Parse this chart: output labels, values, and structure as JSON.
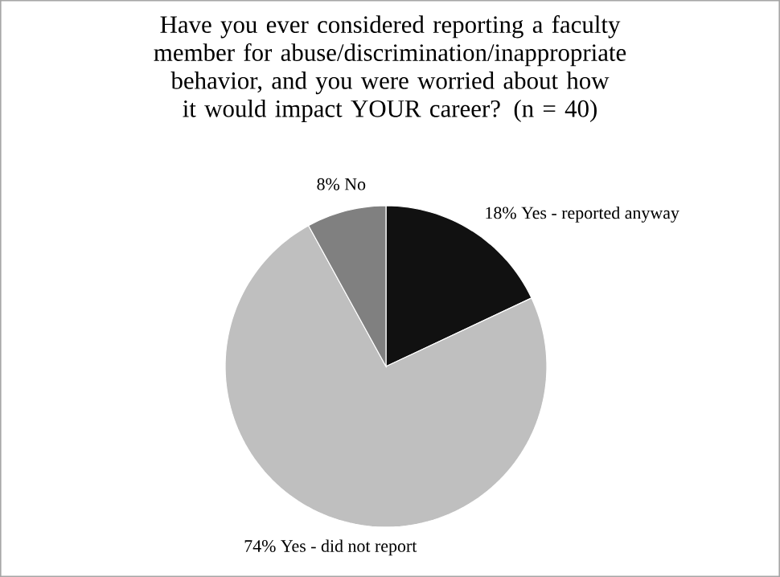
{
  "chart_data": {
    "type": "pie",
    "title": "Have you ever considered reporting a faculty member for abuse/discrimination/inappropriate behavior, and you were worried about how it would impact YOUR career? (n = 40)",
    "categories": [
      "Yes - reported anyway",
      "Yes - did not report",
      "No"
    ],
    "values": [
      18,
      74,
      8
    ],
    "value_labels": [
      "18%",
      "74%",
      "8%"
    ],
    "colors": [
      "#111111",
      "#bfbfbf",
      "#808080"
    ]
  }
}
